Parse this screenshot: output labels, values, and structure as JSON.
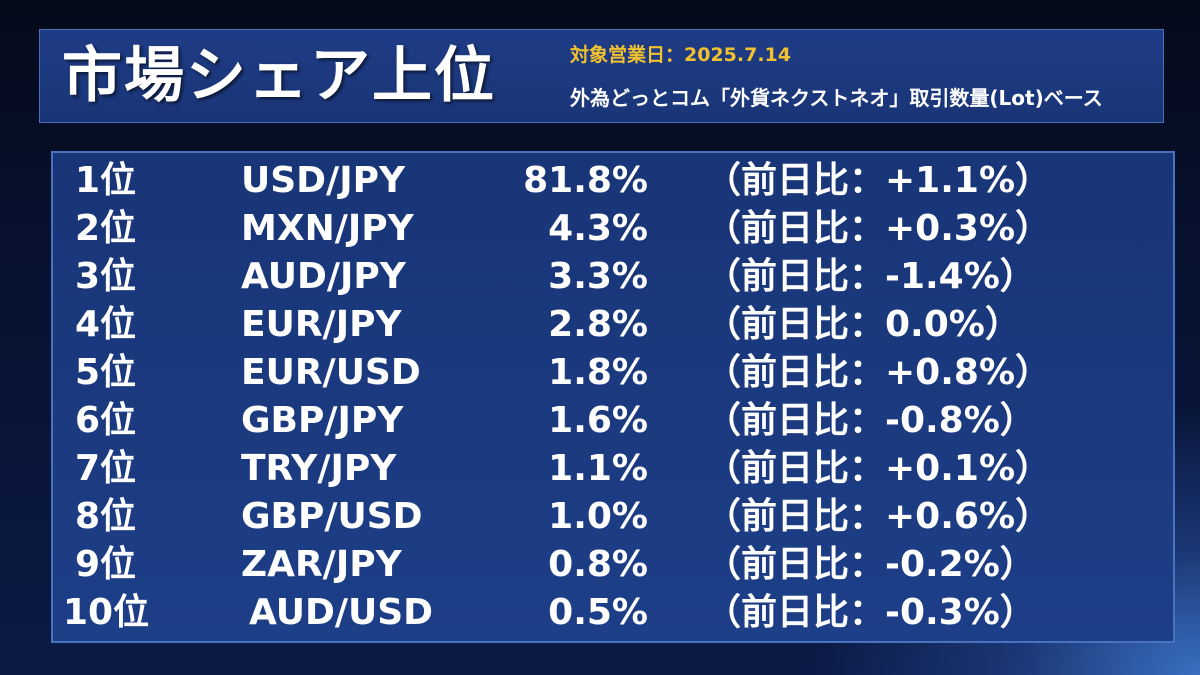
{
  "header": {
    "title": "市場シェア上位",
    "date_label": "対象営業日：",
    "date_value": "2025.7.14",
    "basis": "外為どっとコム「外貨ネクストネオ」取引数量(Lot)ベース"
  },
  "rankings": [
    {
      "rank": "1位",
      "pair": "USD/JPY",
      "share": "81.8%",
      "change": "（前日比：+1.1%）"
    },
    {
      "rank": "2位",
      "pair": "MXN/JPY",
      "share": "4.3%",
      "change": "（前日比：+0.3%）"
    },
    {
      "rank": "3位",
      "pair": "AUD/JPY",
      "share": "3.3%",
      "change": "（前日比：-1.4%）"
    },
    {
      "rank": "4位",
      "pair": "EUR/JPY",
      "share": "2.8%",
      "change": "（前日比：0.0%）"
    },
    {
      "rank": "5位",
      "pair": "EUR/USD",
      "share": "1.8%",
      "change": "（前日比：+0.8%）"
    },
    {
      "rank": "6位",
      "pair": "GBP/JPY",
      "share": "1.6%",
      "change": "（前日比：-0.8%）"
    },
    {
      "rank": "7位",
      "pair": "TRY/JPY",
      "share": "1.1%",
      "change": "（前日比：+0.1%）"
    },
    {
      "rank": "8位",
      "pair": "GBP/USD",
      "share": "1.0%",
      "change": "（前日比：+0.6%）"
    },
    {
      "rank": "9位",
      "pair": "ZAR/JPY",
      "share": "0.8%",
      "change": "（前日比：-0.2%）"
    },
    {
      "rank": "10位",
      "pair": "AUD/USD",
      "share": "0.5%",
      "change": "（前日比：-0.3%）"
    }
  ]
}
